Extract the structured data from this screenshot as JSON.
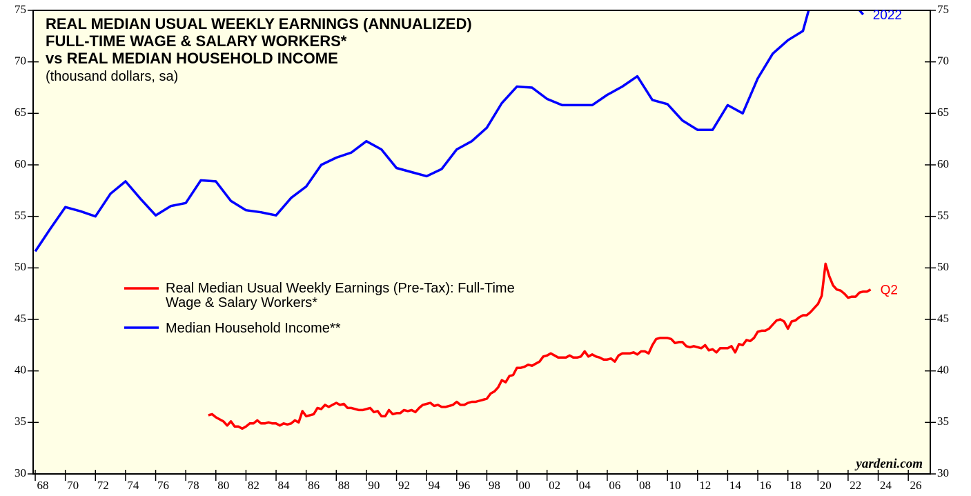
{
  "chart_data": {
    "type": "line",
    "title": [
      "REAL MEDIAN USUAL WEEKLY EARNINGS (ANNUALIZED)",
      "FULL-TIME WAGE & SALARY WORKERS*",
      "vs REAL MEDIAN HOUSEHOLD INCOME"
    ],
    "subtitle": "(thousand dollars, sa)",
    "source": "yardeni.com",
    "xlim": [
      1967.86,
      2027.46
    ],
    "xticks": [
      {
        "value": 1968,
        "label": "68"
      },
      {
        "value": 1970,
        "label": "70"
      },
      {
        "value": 1972,
        "label": "72"
      },
      {
        "value": 1974,
        "label": "74"
      },
      {
        "value": 1976,
        "label": "76"
      },
      {
        "value": 1978,
        "label": "78"
      },
      {
        "value": 1980,
        "label": "80"
      },
      {
        "value": 1982,
        "label": "82"
      },
      {
        "value": 1984,
        "label": "84"
      },
      {
        "value": 1986,
        "label": "86"
      },
      {
        "value": 1988,
        "label": "88"
      },
      {
        "value": 1990,
        "label": "90"
      },
      {
        "value": 1992,
        "label": "92"
      },
      {
        "value": 1994,
        "label": "94"
      },
      {
        "value": 1996,
        "label": "96"
      },
      {
        "value": 1998,
        "label": "98"
      },
      {
        "value": 2000,
        "label": "00"
      },
      {
        "value": 2002,
        "label": "02"
      },
      {
        "value": 2004,
        "label": "04"
      },
      {
        "value": 2006,
        "label": "06"
      },
      {
        "value": 2008,
        "label": "08"
      },
      {
        "value": 2010,
        "label": "10"
      },
      {
        "value": 2012,
        "label": "12"
      },
      {
        "value": 2014,
        "label": "14"
      },
      {
        "value": 2016,
        "label": "16"
      },
      {
        "value": 2018,
        "label": "18"
      },
      {
        "value": 2020,
        "label": "20"
      },
      {
        "value": 2022,
        "label": "22"
      },
      {
        "value": 2024,
        "label": "24"
      },
      {
        "value": 2026,
        "label": "26"
      }
    ],
    "ylim": [
      30,
      75
    ],
    "yticks": [
      30,
      35,
      40,
      45,
      50,
      55,
      60,
      65,
      70,
      75
    ],
    "series": [
      {
        "name": "Real Median Usual Weekly Earnings (Pre-Tax): Full-Time Wage & Salary Workers*",
        "color": "#ff0000",
        "end_label": "Q2",
        "x": [
          1979.5,
          1979.75,
          1980,
          1980.25,
          1980.5,
          1980.75,
          1981,
          1981.25,
          1981.5,
          1981.75,
          1982,
          1982.25,
          1982.5,
          1982.75,
          1983,
          1983.25,
          1983.5,
          1983.75,
          1984,
          1984.25,
          1984.5,
          1984.75,
          1985,
          1985.25,
          1985.5,
          1985.75,
          1986,
          1986.25,
          1986.5,
          1986.75,
          1987,
          1987.25,
          1987.5,
          1987.75,
          1988,
          1988.25,
          1988.5,
          1988.75,
          1989,
          1989.25,
          1989.5,
          1989.75,
          1990,
          1990.25,
          1990.5,
          1990.75,
          1991,
          1991.25,
          1991.5,
          1991.75,
          1992,
          1992.25,
          1992.5,
          1992.75,
          1993,
          1993.25,
          1993.5,
          1993.75,
          1994,
          1994.25,
          1994.5,
          1994.75,
          1995,
          1995.25,
          1995.5,
          1995.75,
          1996,
          1996.25,
          1996.5,
          1996.75,
          1997,
          1997.25,
          1997.5,
          1997.75,
          1998,
          1998.25,
          1998.5,
          1998.75,
          1999,
          1999.25,
          1999.5,
          1999.75,
          2000,
          2000.25,
          2000.5,
          2000.75,
          2001,
          2001.25,
          2001.5,
          2001.75,
          2002,
          2002.25,
          2002.5,
          2002.75,
          2003,
          2003.25,
          2003.5,
          2003.75,
          2004,
          2004.25,
          2004.5,
          2004.75,
          2005,
          2005.25,
          2005.5,
          2005.75,
          2006,
          2006.25,
          2006.5,
          2006.75,
          2007,
          2007.25,
          2007.5,
          2007.75,
          2008,
          2008.25,
          2008.5,
          2008.75,
          2009,
          2009.25,
          2009.5,
          2009.75,
          2010,
          2010.25,
          2010.5,
          2010.75,
          2011,
          2011.25,
          2011.5,
          2011.75,
          2012,
          2012.25,
          2012.5,
          2012.75,
          2013,
          2013.25,
          2013.5,
          2013.75,
          2014,
          2014.25,
          2014.5,
          2014.75,
          2015,
          2015.25,
          2015.5,
          2015.75,
          2016,
          2016.25,
          2016.5,
          2016.75,
          2017,
          2017.25,
          2017.5,
          2017.75,
          2018,
          2018.25,
          2018.5,
          2018.75,
          2019,
          2019.25,
          2019.5,
          2019.75,
          2020,
          2020.25,
          2020.5,
          2020.75,
          2021,
          2021.25,
          2021.5,
          2021.75,
          2022,
          2022.25,
          2022.5,
          2022.75,
          2023,
          2023.25,
          2023.5
        ],
        "values": [
          35.7,
          35.8,
          35.5,
          35.3,
          35.1,
          34.7,
          35.1,
          34.6,
          34.6,
          34.4,
          34.6,
          34.9,
          34.9,
          35.2,
          34.9,
          34.9,
          35.0,
          34.9,
          34.9,
          34.7,
          34.9,
          34.8,
          34.9,
          35.2,
          35.0,
          36.1,
          35.6,
          35.7,
          35.8,
          36.4,
          36.3,
          36.7,
          36.5,
          36.7,
          36.9,
          36.7,
          36.8,
          36.4,
          36.4,
          36.3,
          36.2,
          36.2,
          36.3,
          36.4,
          36.0,
          36.1,
          35.6,
          35.6,
          36.2,
          35.8,
          35.9,
          35.9,
          36.2,
          36.1,
          36.2,
          36.0,
          36.4,
          36.7,
          36.8,
          36.9,
          36.6,
          36.7,
          36.5,
          36.5,
          36.6,
          36.7,
          37.0,
          36.7,
          36.7,
          36.9,
          37.0,
          37.0,
          37.1,
          37.2,
          37.3,
          37.8,
          38.0,
          38.4,
          39.1,
          38.9,
          39.5,
          39.6,
          40.3,
          40.3,
          40.4,
          40.6,
          40.5,
          40.7,
          40.9,
          41.4,
          41.5,
          41.7,
          41.5,
          41.3,
          41.3,
          41.3,
          41.5,
          41.3,
          41.3,
          41.4,
          41.9,
          41.4,
          41.6,
          41.4,
          41.3,
          41.1,
          41.1,
          41.2,
          40.9,
          41.5,
          41.7,
          41.7,
          41.7,
          41.8,
          41.6,
          41.9,
          41.9,
          41.7,
          42.5,
          43.1,
          43.2,
          43.2,
          43.2,
          43.1,
          42.7,
          42.8,
          42.8,
          42.4,
          42.3,
          42.4,
          42.3,
          42.2,
          42.5,
          42.0,
          42.1,
          41.8,
          42.2,
          42.2,
          42.2,
          42.4,
          41.8,
          42.6,
          42.5,
          43.0,
          42.9,
          43.2,
          43.8,
          43.9,
          43.9,
          44.1,
          44.5,
          44.9,
          45.0,
          44.8,
          44.1,
          44.8,
          44.9,
          45.2,
          45.4,
          45.4,
          45.7,
          46.1,
          46.5,
          47.3,
          50.4,
          49.2,
          48.3,
          47.9,
          47.8,
          47.5,
          47.1,
          47.2,
          47.2,
          47.6,
          47.7,
          47.7,
          47.9
        ]
      },
      {
        "name": "Median Household Income**",
        "color": "#0000ff",
        "end_label": "2022",
        "x": [
          1968,
          1969,
          1970,
          1971,
          1972,
          1973,
          1974,
          1975,
          1976,
          1977,
          1978,
          1979,
          1980,
          1981,
          1982,
          1983,
          1984,
          1985,
          1986,
          1987,
          1988,
          1989,
          1990,
          1991,
          1992,
          1993,
          1994,
          1995,
          1996,
          1997,
          1998,
          1999,
          2000,
          2001,
          2002,
          2003,
          2004,
          2005,
          2006,
          2007,
          2008,
          2009,
          2010,
          2011,
          2012,
          2013,
          2014,
          2015,
          2016,
          2017,
          2018,
          2019,
          2020,
          2021,
          2022,
          2023
        ],
        "values": [
          51.6,
          53.8,
          55.9,
          55.5,
          55.0,
          57.2,
          58.4,
          56.7,
          55.1,
          56.0,
          56.3,
          58.5,
          58.4,
          56.5,
          55.6,
          55.4,
          55.1,
          56.8,
          57.9,
          60.0,
          60.7,
          61.2,
          62.3,
          61.5,
          59.7,
          59.3,
          58.9,
          59.6,
          61.5,
          62.3,
          63.6,
          66.0,
          67.6,
          67.5,
          66.4,
          65.8,
          65.8,
          65.8,
          66.8,
          67.6,
          68.6,
          66.3,
          65.9,
          64.3,
          63.4,
          63.4,
          65.8,
          65.0,
          68.4,
          70.8,
          72.1,
          73.0,
          78.3,
          76.7,
          76.3,
          74.6
        ]
      }
    ]
  }
}
